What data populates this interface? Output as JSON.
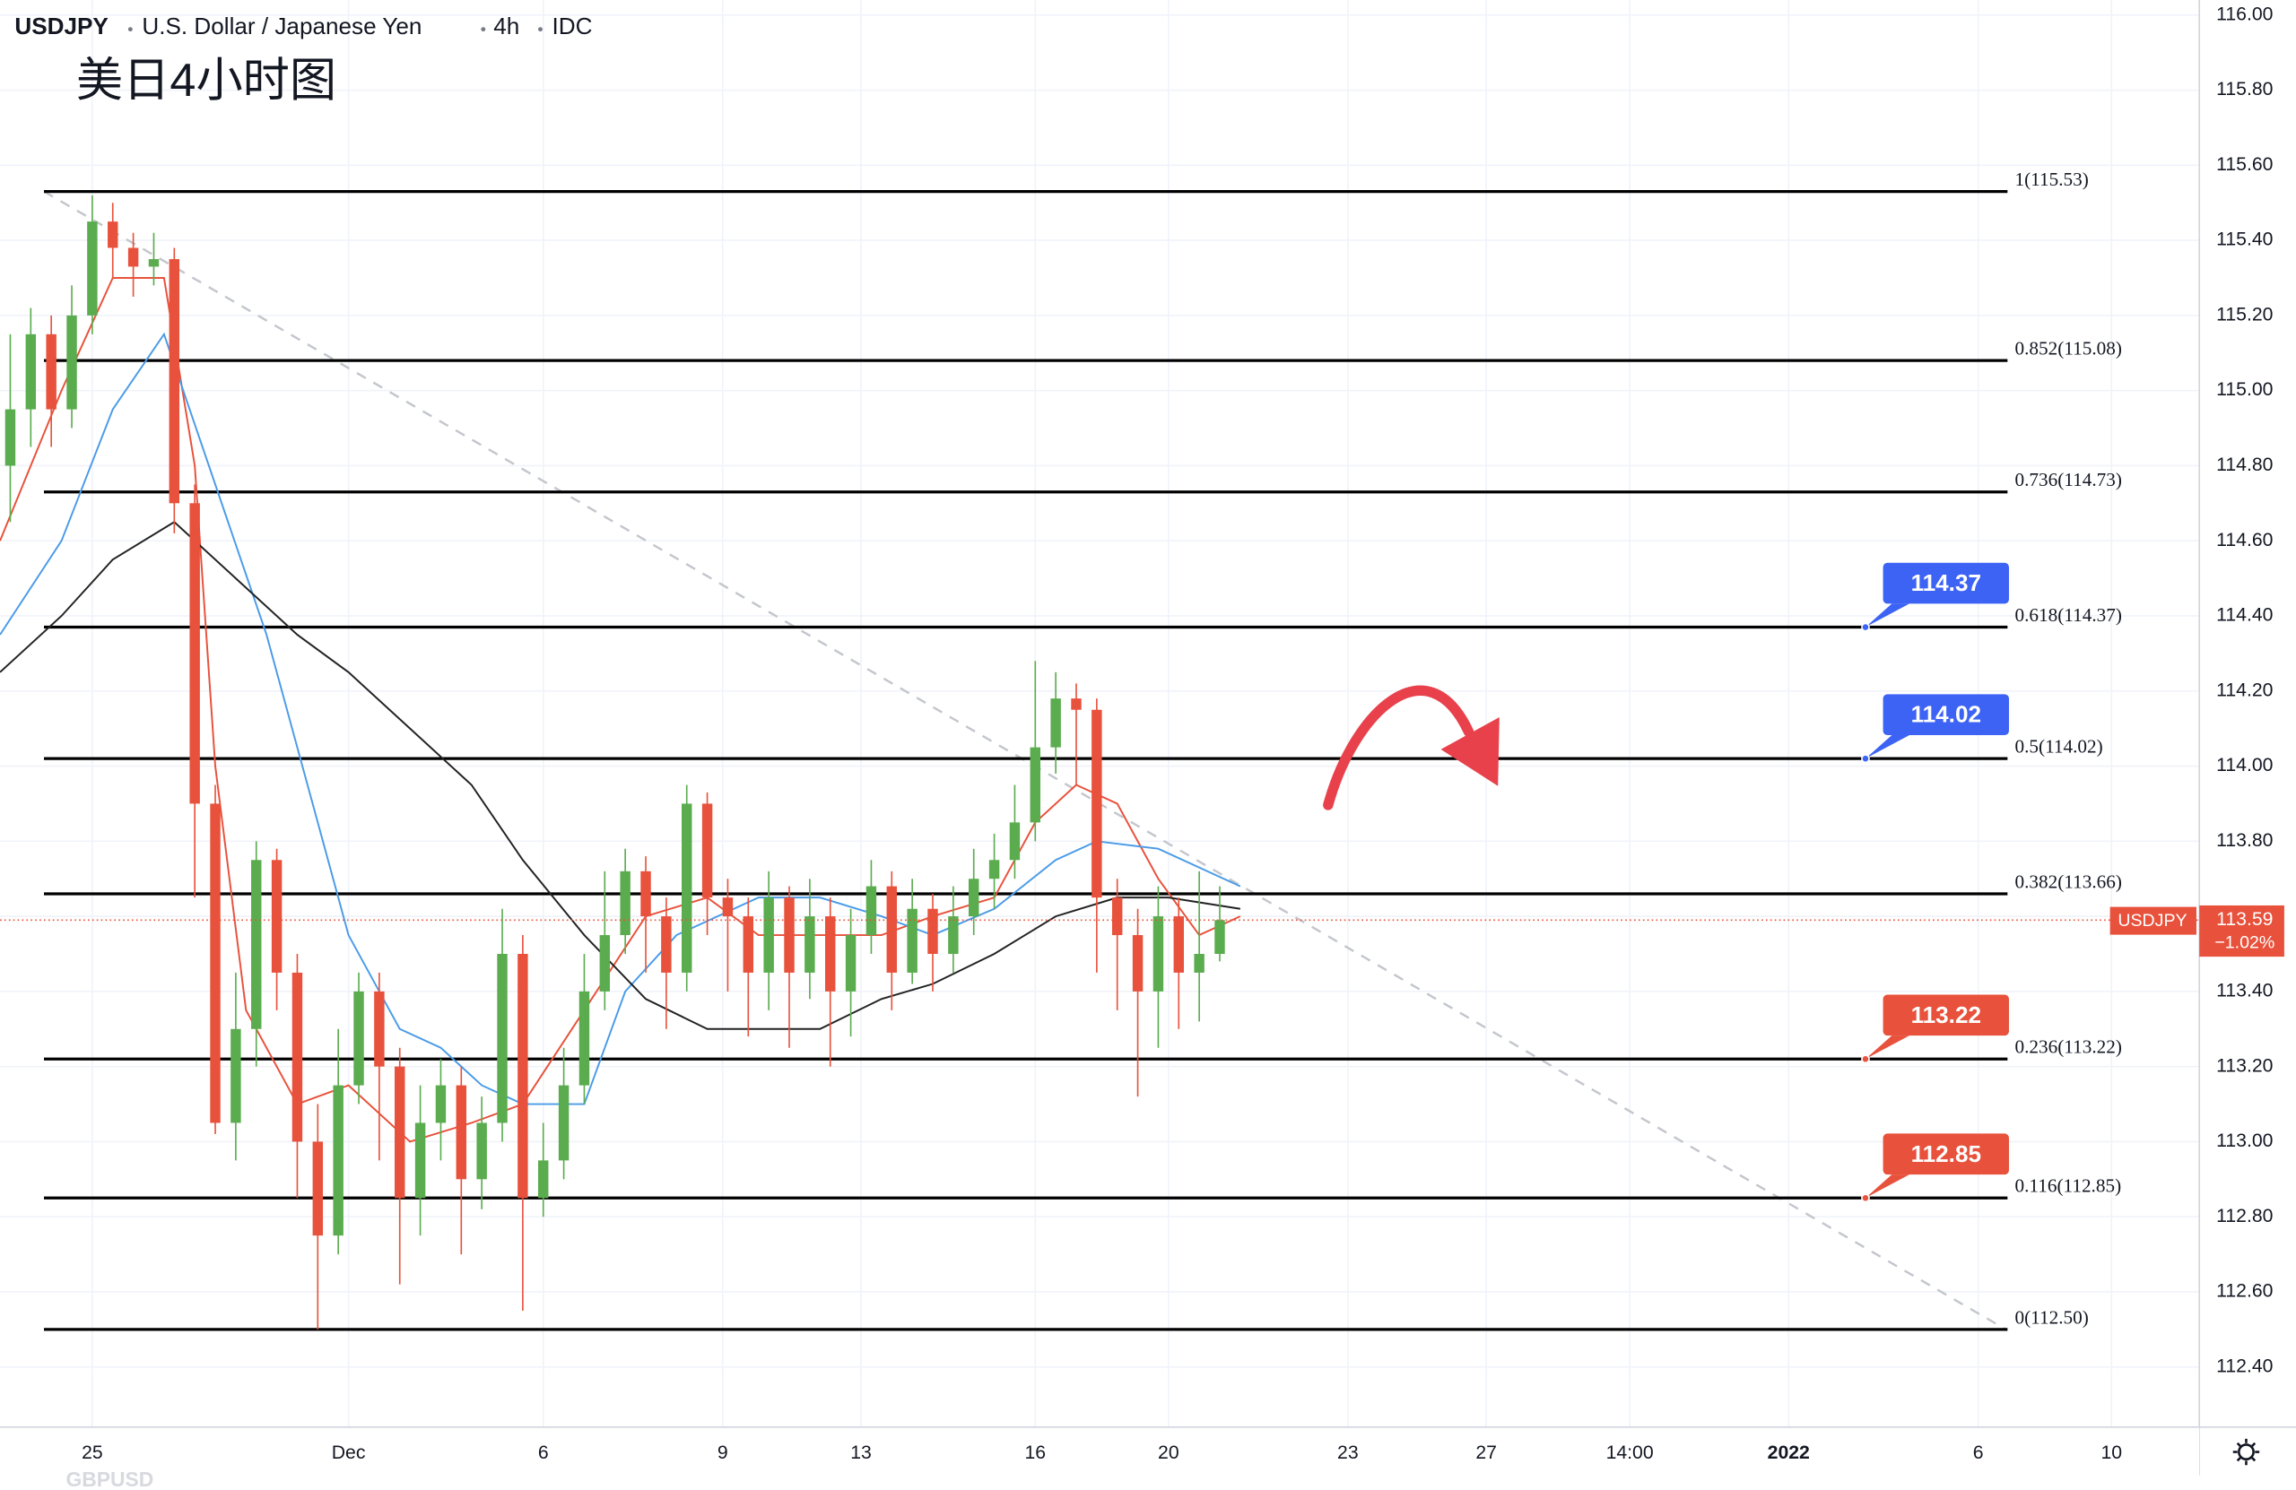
{
  "title_parts": [
    "USDJPY",
    "U.S. Dollar / Japanese Yen",
    "4h",
    "IDC"
  ],
  "annotation": "美日4小时图",
  "watermark": "GBPUSD",
  "chart_data": {
    "type": "candlestick",
    "x": [
      1,
      3,
      5,
      7,
      9,
      11,
      13,
      15,
      17,
      19,
      21,
      23,
      25,
      27,
      29,
      31,
      33,
      35,
      37,
      39,
      41,
      43,
      45,
      47,
      49,
      51,
      53,
      55,
      57,
      59,
      61,
      63,
      65,
      67,
      69,
      71,
      73,
      75,
      77,
      79,
      81,
      83,
      85,
      87,
      89,
      91,
      93,
      95,
      97,
      99,
      101,
      103,
      105,
      107,
      109,
      111,
      113,
      115,
      117,
      119
    ],
    "open": [
      114.8,
      114.95,
      115.15,
      114.95,
      115.2,
      115.45,
      115.38,
      115.33,
      115.35,
      114.7,
      113.9,
      113.05,
      113.3,
      113.75,
      113.45,
      113.0,
      112.75,
      113.15,
      113.4,
      113.2,
      112.85,
      113.05,
      113.15,
      112.9,
      113.05,
      113.5,
      112.85,
      112.95,
      113.15,
      113.4,
      113.55,
      113.72,
      113.6,
      113.45,
      113.9,
      113.65,
      113.6,
      113.45,
      113.65,
      113.45,
      113.6,
      113.4,
      113.55,
      113.68,
      113.45,
      113.62,
      113.5,
      113.6,
      113.7,
      113.75,
      113.85,
      114.05,
      114.18,
      114.15,
      113.65,
      113.55,
      113.4,
      113.6,
      113.45,
      113.5
    ],
    "high": [
      115.15,
      115.22,
      115.2,
      115.28,
      115.52,
      115.5,
      115.42,
      115.42,
      115.38,
      114.75,
      113.95,
      113.45,
      113.8,
      113.78,
      113.5,
      113.1,
      113.3,
      113.45,
      113.45,
      113.25,
      113.15,
      113.22,
      113.2,
      113.12,
      113.62,
      113.55,
      113.05,
      113.25,
      113.5,
      113.72,
      113.78,
      113.76,
      113.65,
      113.95,
      113.93,
      113.7,
      113.65,
      113.72,
      113.68,
      113.7,
      113.65,
      113.62,
      113.75,
      113.72,
      113.7,
      113.66,
      113.68,
      113.78,
      113.82,
      113.95,
      114.28,
      114.25,
      114.22,
      114.18,
      113.7,
      113.62,
      113.68,
      113.65,
      113.72,
      113.68
    ],
    "low": [
      114.65,
      114.85,
      114.85,
      114.9,
      115.15,
      115.3,
      115.25,
      115.28,
      114.62,
      113.65,
      113.02,
      112.95,
      113.2,
      113.35,
      112.85,
      112.5,
      112.7,
      113.1,
      112.95,
      112.62,
      112.75,
      112.95,
      112.7,
      112.82,
      113.0,
      112.55,
      112.8,
      112.9,
      113.1,
      113.35,
      113.5,
      113.45,
      113.3,
      113.4,
      113.55,
      113.4,
      113.28,
      113.35,
      113.25,
      113.38,
      113.2,
      113.28,
      113.5,
      113.35,
      113.42,
      113.4,
      113.45,
      113.55,
      113.62,
      113.7,
      113.8,
      113.98,
      113.95,
      113.45,
      113.35,
      113.12,
      113.25,
      113.3,
      113.32,
      113.48
    ],
    "close": [
      114.95,
      115.15,
      114.95,
      115.2,
      115.45,
      115.38,
      115.33,
      115.35,
      114.7,
      113.9,
      113.05,
      113.3,
      113.75,
      113.45,
      113.0,
      112.75,
      113.15,
      113.4,
      113.2,
      112.85,
      113.05,
      113.15,
      112.9,
      113.05,
      113.5,
      112.85,
      112.95,
      113.15,
      113.4,
      113.55,
      113.72,
      113.6,
      113.45,
      113.9,
      113.65,
      113.6,
      113.45,
      113.65,
      113.45,
      113.6,
      113.4,
      113.55,
      113.68,
      113.45,
      113.62,
      113.5,
      113.6,
      113.7,
      113.75,
      113.85,
      114.05,
      114.18,
      114.15,
      113.65,
      113.55,
      113.4,
      113.6,
      113.45,
      113.5,
      113.59
    ],
    "up_color": "#5aac4e",
    "down_color": "#e8513b",
    "xlim": [
      0,
      214.5
    ],
    "xticks": [
      {
        "value": 9,
        "label": "25"
      },
      {
        "value": 34,
        "label": "Dec"
      },
      {
        "value": 53,
        "label": "6"
      },
      {
        "value": 70.5,
        "label": "9"
      },
      {
        "value": 84,
        "label": "13"
      },
      {
        "value": 101,
        "label": "16"
      },
      {
        "value": 114,
        "label": "20"
      },
      {
        "value": 131.5,
        "label": "23"
      },
      {
        "value": 145,
        "label": "27"
      },
      {
        "value": 159,
        "label": "14:00"
      },
      {
        "value": 174.5,
        "label": "2022"
      },
      {
        "value": 193,
        "label": "6"
      },
      {
        "value": 206,
        "label": "10"
      }
    ],
    "ylim": [
      112.24,
      116.04
    ],
    "yticks": [
      {
        "value": 112.4,
        "label": "112.40"
      },
      {
        "value": 112.6,
        "label": "112.60"
      },
      {
        "value": 112.8,
        "label": "112.80"
      },
      {
        "value": 113,
        "label": "113.00"
      },
      {
        "value": 113.2,
        "label": "113.20"
      },
      {
        "value": 113.4,
        "label": "113.40"
      },
      {
        "value": 113.6,
        "label": "113.60"
      },
      {
        "value": 113.8,
        "label": "113.80"
      },
      {
        "value": 114,
        "label": "114.00"
      },
      {
        "value": 114.2,
        "label": "114.20"
      },
      {
        "value": 114.4,
        "label": "114.40"
      },
      {
        "value": 114.6,
        "label": "114.60"
      },
      {
        "value": 114.8,
        "label": "114.80"
      },
      {
        "value": 115,
        "label": "115.00"
      },
      {
        "value": 115.2,
        "label": "115.20"
      },
      {
        "value": 115.4,
        "label": "115.40"
      },
      {
        "value": 115.6,
        "label": "115.60"
      },
      {
        "value": 115.8,
        "label": "115.80"
      },
      {
        "value": 116,
        "label": "116.00"
      }
    ],
    "grid": true,
    "moving_averages": [
      {
        "color": "#e8513b",
        "x": [
          0,
          6,
          11,
          16,
          19,
          21,
          24,
          29,
          34,
          40,
          46,
          51,
          57,
          63,
          69,
          74,
          80,
          86,
          91,
          97,
          101,
          105,
          109,
          113,
          117,
          121
        ],
        "values": [
          114.6,
          115.0,
          115.3,
          115.3,
          114.8,
          114.0,
          113.35,
          113.1,
          113.15,
          113.0,
          113.05,
          113.1,
          113.35,
          113.6,
          113.65,
          113.55,
          113.55,
          113.55,
          113.6,
          113.65,
          113.85,
          113.95,
          113.9,
          113.7,
          113.55,
          113.6
        ]
      },
      {
        "color": "#4a9be8",
        "x": [
          0,
          6,
          11,
          16,
          21,
          26,
          30,
          34,
          39,
          43,
          47,
          51,
          57,
          61,
          66,
          70,
          74,
          80,
          86,
          91,
          97,
          103,
          107,
          113,
          121
        ],
        "values": [
          114.35,
          114.6,
          114.95,
          115.15,
          114.75,
          114.35,
          113.95,
          113.55,
          113.3,
          113.25,
          113.15,
          113.1,
          113.1,
          113.4,
          113.55,
          113.6,
          113.65,
          113.65,
          113.6,
          113.55,
          113.62,
          113.75,
          113.8,
          113.78,
          113.68
        ]
      },
      {
        "color": "#222222",
        "x": [
          0,
          6,
          11,
          17,
          23,
          29,
          34,
          40,
          46,
          51,
          57,
          63,
          69,
          74,
          80,
          86,
          91,
          97,
          103,
          109,
          114,
          121
        ],
        "values": [
          114.25,
          114.4,
          114.55,
          114.65,
          114.5,
          114.35,
          114.25,
          114.1,
          113.95,
          113.75,
          113.55,
          113.38,
          113.3,
          113.3,
          113.3,
          113.38,
          113.42,
          113.5,
          113.6,
          113.65,
          113.65,
          113.62
        ]
      }
    ],
    "fib_levels": [
      {
        "value": 115.53,
        "label": "1(115.53)"
      },
      {
        "value": 115.08,
        "label": "0.852(115.08)"
      },
      {
        "value": 114.73,
        "label": "0.736(114.73)"
      },
      {
        "value": 114.37,
        "label": "0.618(114.37)"
      },
      {
        "value": 114.02,
        "label": "0.5(114.02)"
      },
      {
        "value": 113.66,
        "label": "0.382(113.66)"
      },
      {
        "value": 113.22,
        "label": "0.236(113.22)"
      },
      {
        "value": 112.85,
        "label": "0.116(112.85)"
      },
      {
        "value": 112.5,
        "label": "0(112.50)"
      }
    ],
    "trendline": {
      "x": [
        4.3,
        195.7
      ],
      "y": [
        115.53,
        112.5
      ]
    },
    "callouts": [
      {
        "value": 114.37,
        "color": "#3d63f5"
      },
      {
        "value": 114.02,
        "color": "#3d63f5"
      },
      {
        "value": 113.22,
        "color": "#e8513b"
      },
      {
        "value": 112.85,
        "color": "#e8513b"
      }
    ],
    "last_price": {
      "symbol": "USDJPY",
      "value": 113.59,
      "change_label": "−1.02%",
      "color": "#e8513b"
    }
  }
}
